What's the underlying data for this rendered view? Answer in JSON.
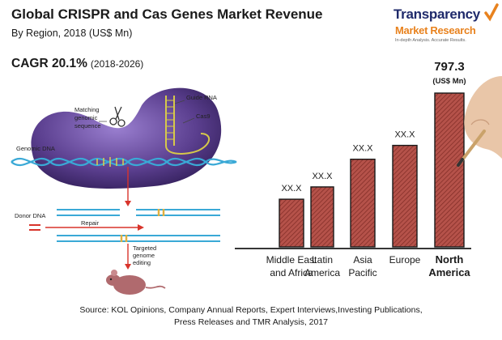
{
  "header": {
    "title": "Global CRISPR and Cas Genes Market Revenue",
    "subtitle": "By Region, 2018 (US$ Mn)",
    "cagr_label": "CAGR 20.1%",
    "cagr_period": "(2018-2026)"
  },
  "logo": {
    "line1": "Transparency",
    "line2": "Market Research",
    "tagline": "In-depth Analysis. Accurate Results."
  },
  "diagram": {
    "labels": {
      "guide_rna": "Guide RNA",
      "matching_1": "Matching",
      "matching_2": "genomic",
      "matching_3": "sequence",
      "cas9": "Cas9",
      "genomic_dna": "Genomic DNA",
      "donor_dna": "Donor DNA",
      "repair": "Repair",
      "targeted_1": "Targeted",
      "targeted_2": "genome",
      "targeted_3": "editing"
    },
    "colors": {
      "protein": "#5b3f8f",
      "dna": "#3aa9d6",
      "arrow": "#d8342b"
    }
  },
  "chart_data": {
    "type": "bar",
    "categories": [
      "Middle East and Africa",
      "Latin America",
      "Asia Pacific",
      "Europe",
      "North America"
    ],
    "category_lines": [
      [
        "Middle East",
        "and Africa"
      ],
      [
        "Latin",
        "America"
      ],
      [
        "Asia",
        "Pacific"
      ],
      [
        "Europe"
      ],
      [
        "North",
        "America"
      ]
    ],
    "values": [
      null,
      null,
      null,
      null,
      797.3
    ],
    "value_labels": [
      "XX.X",
      "XX.X",
      "XX.X",
      "XX.X",
      "797.3"
    ],
    "unit_label": "(US$ Mn)",
    "bar_color": "#a8443b",
    "highlight_index": 4
  },
  "source": {
    "line1": "Source: KOL Opinions, Company Annual Reports, Expert Interviews,Investing Publications,",
    "line2": "Press Releases and TMR Analysis, 2017"
  }
}
